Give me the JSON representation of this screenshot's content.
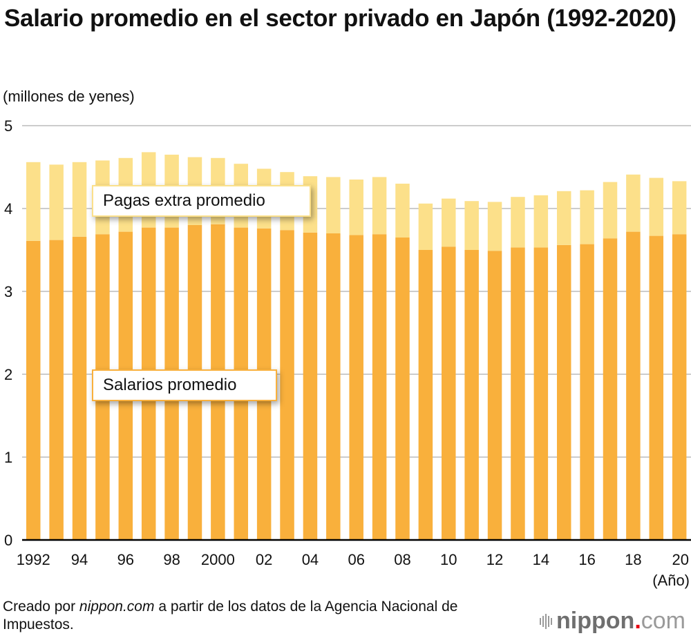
{
  "chart_data": {
    "type": "bar",
    "stacked": true,
    "title": "Salario promedio en el sector privado en Japón (1992-2020)",
    "ylabel": "(millones de yenes)",
    "xlabel": "(Año)",
    "ylim": [
      0,
      5
    ],
    "yticks": [
      0,
      1,
      2,
      3,
      4,
      5
    ],
    "grid": true,
    "categories": [
      1992,
      1993,
      1994,
      1995,
      1996,
      1997,
      1998,
      1999,
      2000,
      2001,
      2002,
      2003,
      2004,
      2005,
      2006,
      2007,
      2008,
      2009,
      2010,
      2011,
      2012,
      2013,
      2014,
      2015,
      2016,
      2017,
      2018,
      2019,
      2020
    ],
    "xtick_labels": [
      {
        "year": 1992,
        "label": "1992"
      },
      {
        "year": 1994,
        "label": "94"
      },
      {
        "year": 1996,
        "label": "96"
      },
      {
        "year": 1998,
        "label": "98"
      },
      {
        "year": 2000,
        "label": "2000"
      },
      {
        "year": 2002,
        "label": "02"
      },
      {
        "year": 2004,
        "label": "04"
      },
      {
        "year": 2006,
        "label": "06"
      },
      {
        "year": 2008,
        "label": "08"
      },
      {
        "year": 2010,
        "label": "10"
      },
      {
        "year": 2012,
        "label": "12"
      },
      {
        "year": 2014,
        "label": "14"
      },
      {
        "year": 2016,
        "label": "16"
      },
      {
        "year": 2018,
        "label": "18"
      },
      {
        "year": 2020,
        "label": "20"
      }
    ],
    "series": [
      {
        "name": "Salarios promedio",
        "color": "#f9b03c",
        "values": [
          3.61,
          3.62,
          3.66,
          3.69,
          3.72,
          3.77,
          3.77,
          3.8,
          3.81,
          3.77,
          3.76,
          3.74,
          3.71,
          3.7,
          3.68,
          3.69,
          3.65,
          3.5,
          3.54,
          3.5,
          3.49,
          3.53,
          3.53,
          3.56,
          3.57,
          3.64,
          3.72,
          3.67,
          3.69
        ]
      },
      {
        "name": "Pagas extra promedio",
        "color": "#fce08a",
        "values": [
          0.95,
          0.91,
          0.9,
          0.89,
          0.89,
          0.91,
          0.88,
          0.82,
          0.8,
          0.77,
          0.72,
          0.7,
          0.68,
          0.68,
          0.67,
          0.69,
          0.65,
          0.56,
          0.58,
          0.59,
          0.59,
          0.61,
          0.63,
          0.65,
          0.65,
          0.68,
          0.69,
          0.7,
          0.64
        ]
      }
    ],
    "totals": [
      4.56,
      4.53,
      4.56,
      4.58,
      4.61,
      4.68,
      4.65,
      4.62,
      4.61,
      4.54,
      4.48,
      4.44,
      4.39,
      4.38,
      4.35,
      4.38,
      4.3,
      4.06,
      4.12,
      4.09,
      4.08,
      4.14,
      4.16,
      4.21,
      4.22,
      4.32,
      4.41,
      4.37,
      4.33
    ]
  },
  "header": {
    "title": "Salario promedio en el sector privado en Japón (1992-2020)",
    "unit_label": "(millones de yenes)"
  },
  "legend": {
    "extra_label": "Pagas extra promedio",
    "salary_label": "Salarios promedio"
  },
  "axis": {
    "year_unit": "(Año)"
  },
  "footer": {
    "source_prefix": "Creado por ",
    "source_site": "nippon.com",
    "source_suffix": " a partir de los datos de la Agencia Nacional de Impuestos.",
    "logo_name": "nippon",
    "logo_dot": ".",
    "logo_tld": "com"
  }
}
